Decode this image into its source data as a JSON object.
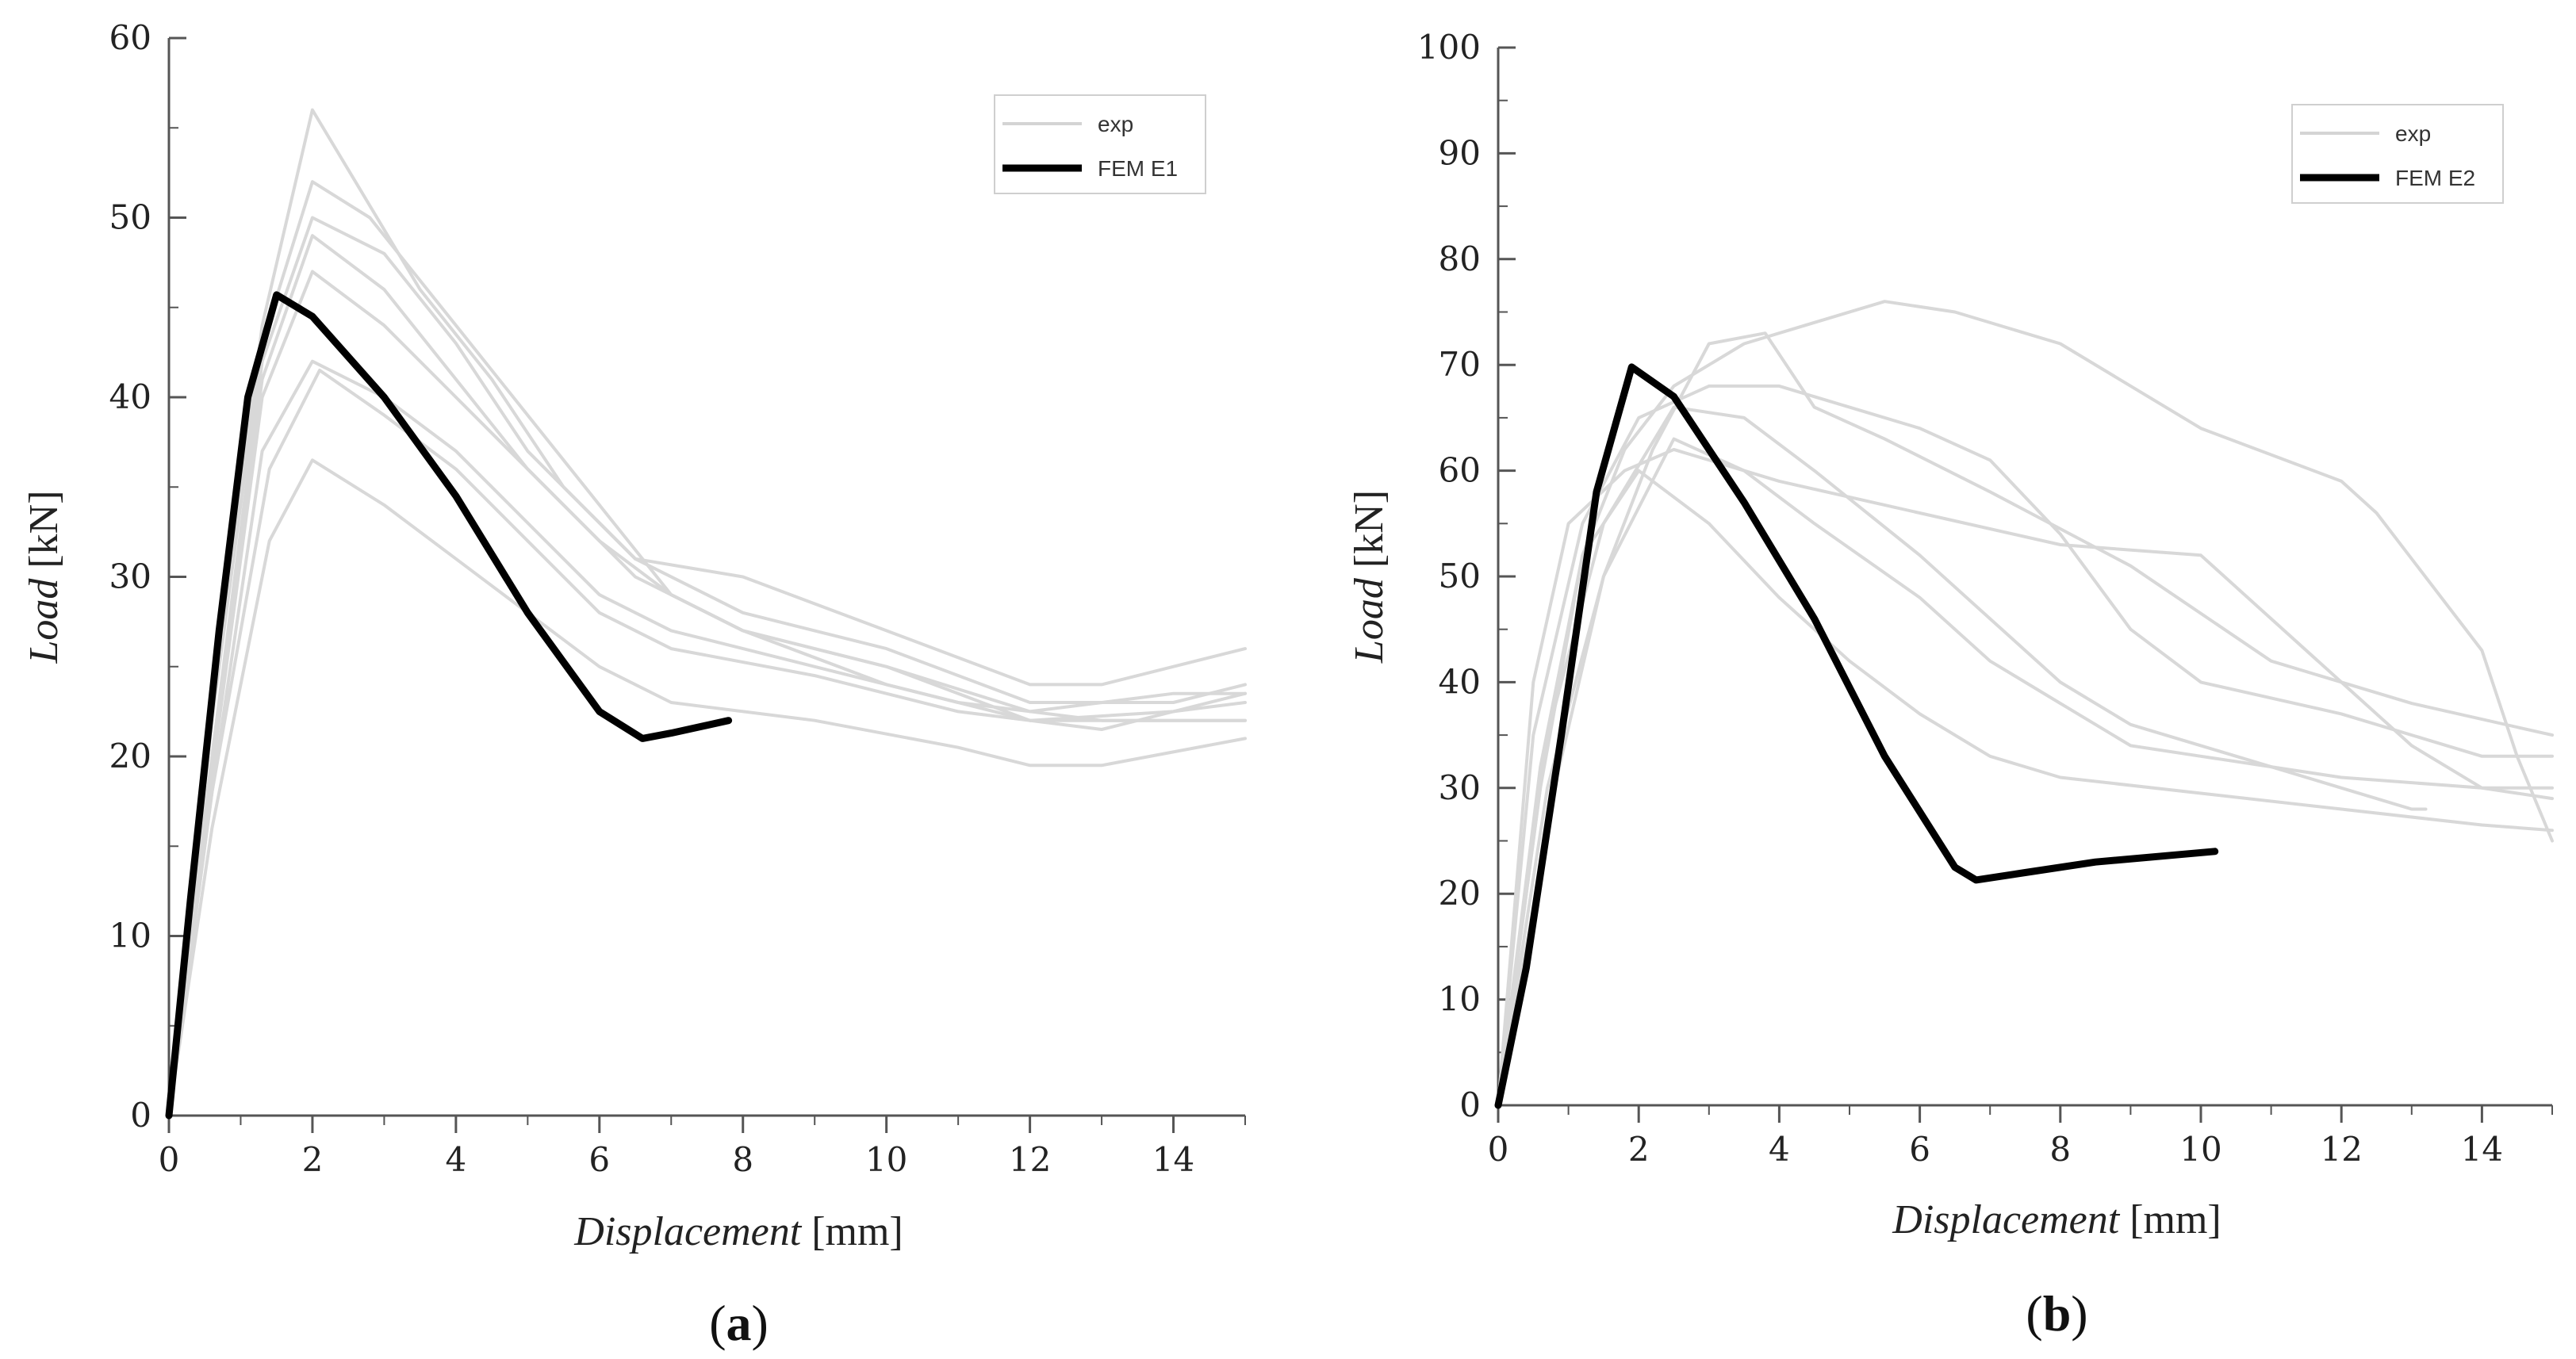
{
  "chart_data": [
    {
      "type": "line",
      "panel_label": "a",
      "xlabel": "Displacement",
      "xunit": "[mm]",
      "ylabel": "Load",
      "yunit": "[kN]",
      "xlim": [
        0,
        15
      ],
      "ylim": [
        0,
        60
      ],
      "xticks": [
        0,
        2,
        4,
        6,
        8,
        10,
        12,
        14
      ],
      "yticks": [
        0,
        10,
        20,
        30,
        40,
        50,
        60
      ],
      "legend_position": "top-right",
      "legend": [
        {
          "label": "exp",
          "color": "#d4d4d4"
        },
        {
          "label": "FEM E1",
          "color": "#000000"
        }
      ],
      "series": [
        {
          "name": "exp",
          "color": "#d8d8d8",
          "points": [
            [
              0,
              0
            ],
            [
              0.6,
              22
            ],
            [
              1.3,
              44
            ],
            [
              2.0,
              56
            ],
            [
              2.6,
              52
            ],
            [
              3.5,
              46
            ],
            [
              4.5,
              41
            ],
            [
              5.5,
              35
            ],
            [
              6.5,
              31
            ],
            [
              8,
              30
            ],
            [
              10,
              27
            ],
            [
              12,
              24
            ],
            [
              13,
              24
            ],
            [
              15,
              26
            ]
          ]
        },
        {
          "name": "exp",
          "color": "#d8d8d8",
          "points": [
            [
              0,
              0
            ],
            [
              0.6,
              22
            ],
            [
              1.3,
              43
            ],
            [
              2.0,
              52
            ],
            [
              2.8,
              50
            ],
            [
              4,
              44
            ],
            [
              5,
              39
            ],
            [
              6,
              34
            ],
            [
              7,
              29
            ],
            [
              8,
              27
            ],
            [
              10,
              25
            ],
            [
              12,
              22.5
            ],
            [
              14,
              23.5
            ],
            [
              15,
              23.5
            ]
          ]
        },
        {
          "name": "exp",
          "color": "#d8d8d8",
          "points": [
            [
              0,
              0
            ],
            [
              0.6,
              20
            ],
            [
              1.3,
              42
            ],
            [
              2.0,
              50
            ],
            [
              3,
              48
            ],
            [
              4,
              43
            ],
            [
              5,
              37
            ],
            [
              6.5,
              31
            ],
            [
              8,
              28
            ],
            [
              10,
              26
            ],
            [
              12,
              23
            ],
            [
              14,
              23
            ],
            [
              15,
              24
            ]
          ]
        },
        {
          "name": "exp",
          "color": "#d8d8d8",
          "points": [
            [
              0,
              0
            ],
            [
              0.6,
              20
            ],
            [
              1.3,
              41
            ],
            [
              2.0,
              49
            ],
            [
              3,
              46
            ],
            [
              4,
              41
            ],
            [
              5,
              36
            ],
            [
              6.5,
              30
            ],
            [
              8,
              27
            ],
            [
              10,
              25
            ],
            [
              12,
              22
            ],
            [
              14,
              22.5
            ],
            [
              15,
              23
            ]
          ]
        },
        {
          "name": "exp",
          "color": "#d8d8d8",
          "points": [
            [
              0,
              0
            ],
            [
              0.6,
              19
            ],
            [
              1.3,
              40
            ],
            [
              2.0,
              47
            ],
            [
              3,
              44
            ],
            [
              4,
              40
            ],
            [
              5,
              36
            ],
            [
              6,
              32
            ],
            [
              7,
              29
            ],
            [
              8,
              27
            ],
            [
              10,
              24
            ],
            [
              12,
              22
            ],
            [
              14,
              22
            ],
            [
              15,
              22
            ]
          ]
        },
        {
          "name": "exp",
          "color": "#d8d8d8",
          "points": [
            [
              0,
              0
            ],
            [
              0.6,
              18
            ],
            [
              1.3,
              37
            ],
            [
              2.0,
              42
            ],
            [
              3,
              40
            ],
            [
              4,
              37
            ],
            [
              5,
              33
            ],
            [
              6,
              29
            ],
            [
              7,
              27
            ],
            [
              9,
              25
            ],
            [
              11,
              23
            ],
            [
              13,
              22
            ],
            [
              15,
              22
            ]
          ]
        },
        {
          "name": "exp",
          "color": "#d8d8d8",
          "points": [
            [
              0,
              0
            ],
            [
              0.6,
              18
            ],
            [
              1.4,
              36
            ],
            [
              2.1,
              41.5
            ],
            [
              3,
              39
            ],
            [
              4,
              36
            ],
            [
              5,
              32
            ],
            [
              6,
              28
            ],
            [
              7,
              26
            ],
            [
              9,
              24.5
            ],
            [
              11,
              22.5
            ],
            [
              13,
              21.5
            ],
            [
              15,
              23.5
            ]
          ]
        },
        {
          "name": "exp",
          "color": "#d8d8d8",
          "points": [
            [
              0,
              0
            ],
            [
              0.6,
              16
            ],
            [
              1.4,
              32
            ],
            [
              2.0,
              36.5
            ],
            [
              3,
              34
            ],
            [
              4,
              31
            ],
            [
              5,
              28
            ],
            [
              6,
              25
            ],
            [
              7,
              23
            ],
            [
              9,
              22
            ],
            [
              11,
              20.5
            ],
            [
              12,
              19.5
            ],
            [
              13,
              19.5
            ],
            [
              15,
              21
            ]
          ]
        },
        {
          "name": "FEM E1",
          "color": "#000000",
          "points": [
            [
              0,
              0
            ],
            [
              0.3,
              12
            ],
            [
              0.7,
              27
            ],
            [
              1.1,
              40
            ],
            [
              1.5,
              45.7
            ],
            [
              2.0,
              44.5
            ],
            [
              3,
              40
            ],
            [
              4,
              34.5
            ],
            [
              5,
              28
            ],
            [
              6,
              22.5
            ],
            [
              6.6,
              21
            ],
            [
              7,
              21.3
            ],
            [
              7.8,
              22
            ]
          ]
        }
      ]
    },
    {
      "type": "line",
      "panel_label": "b",
      "xlabel": "Displacement",
      "xunit": "[mm]",
      "ylabel": "Load",
      "yunit": "[kN]",
      "xlim": [
        0,
        15
      ],
      "ylim": [
        0,
        100
      ],
      "xticks": [
        0,
        2,
        4,
        6,
        8,
        10,
        12,
        14
      ],
      "yticks": [
        0,
        10,
        20,
        30,
        40,
        50,
        60,
        70,
        80,
        90,
        100
      ],
      "legend_position": "top-right",
      "legend": [
        {
          "label": "exp",
          "color": "#d4d4d4"
        },
        {
          "label": "FEM E2",
          "color": "#000000"
        }
      ],
      "series": [
        {
          "name": "exp",
          "color": "#d8d8d8",
          "points": [
            [
              0,
              0
            ],
            [
              0.6,
              30
            ],
            [
              1.2,
              52
            ],
            [
              1.8,
              62
            ],
            [
              2.5,
              68
            ],
            [
              3.5,
              72
            ],
            [
              4.5,
              74
            ],
            [
              5.5,
              76
            ],
            [
              6.5,
              75
            ],
            [
              8,
              72
            ],
            [
              10,
              64
            ],
            [
              12,
              59
            ],
            [
              12.5,
              56
            ],
            [
              14,
              43
            ],
            [
              14.5,
              33
            ],
            [
              15,
              25
            ]
          ]
        },
        {
          "name": "exp",
          "color": "#d8d8d8",
          "points": [
            [
              0,
              0
            ],
            [
              0.8,
              30
            ],
            [
              1.5,
              50
            ],
            [
              2.2,
              62
            ],
            [
              3,
              72
            ],
            [
              3.8,
              73
            ],
            [
              4.5,
              66
            ],
            [
              5.5,
              63
            ],
            [
              7,
              58
            ],
            [
              9,
              51
            ],
            [
              11,
              42
            ],
            [
              13,
              38
            ],
            [
              15,
              35
            ]
          ]
        },
        {
          "name": "exp",
          "color": "#d8d8d8",
          "points": [
            [
              0,
              0
            ],
            [
              0.5,
              35
            ],
            [
              1.2,
              55
            ],
            [
              2,
              65
            ],
            [
              3,
              68
            ],
            [
              4,
              68
            ],
            [
              5,
              66
            ],
            [
              6,
              64
            ],
            [
              7,
              61
            ],
            [
              8,
              54
            ],
            [
              9,
              45
            ],
            [
              10,
              40
            ],
            [
              12,
              37
            ],
            [
              14,
              33
            ],
            [
              15,
              33
            ]
          ]
        },
        {
          "name": "exp",
          "color": "#d8d8d8",
          "points": [
            [
              0,
              0
            ],
            [
              0.5,
              40
            ],
            [
              1.0,
              55
            ],
            [
              1.8,
              60
            ],
            [
              2.5,
              62
            ],
            [
              4,
              59
            ],
            [
              6,
              56
            ],
            [
              8,
              53
            ],
            [
              10,
              52
            ],
            [
              11,
              46
            ],
            [
              12,
              40
            ],
            [
              13,
              34
            ],
            [
              14,
              30
            ],
            [
              15,
              30
            ]
          ]
        },
        {
          "name": "exp",
          "color": "#d8d8d8",
          "points": [
            [
              0,
              0
            ],
            [
              0.7,
              35
            ],
            [
              1.5,
              55
            ],
            [
              2.5,
              66
            ],
            [
              3.5,
              65
            ],
            [
              4.5,
              60
            ],
            [
              6,
              52
            ],
            [
              7,
              46
            ],
            [
              8,
              40
            ],
            [
              9,
              36
            ],
            [
              10,
              34
            ],
            [
              11,
              32
            ],
            [
              12,
              30
            ],
            [
              13,
              28
            ],
            [
              13.2,
              28
            ]
          ]
        },
        {
          "name": "exp",
          "color": "#d8d8d8",
          "points": [
            [
              0,
              0
            ],
            [
              0.7,
              30
            ],
            [
              1.5,
              50
            ],
            [
              2.5,
              63
            ],
            [
              3.5,
              60
            ],
            [
              4.5,
              55
            ],
            [
              6,
              48
            ],
            [
              7,
              42
            ],
            [
              8,
              38
            ],
            [
              9,
              34
            ],
            [
              10,
              33
            ],
            [
              12,
              31
            ],
            [
              14,
              30
            ],
            [
              15,
              29
            ]
          ]
        },
        {
          "name": "exp",
          "color": "#d8d8d8",
          "points": [
            [
              0,
              0
            ],
            [
              0.6,
              32
            ],
            [
              1.2,
              52
            ],
            [
              2,
              60
            ],
            [
              3,
              55
            ],
            [
              4,
              48
            ],
            [
              5,
              42
            ],
            [
              6,
              37
            ],
            [
              7,
              33
            ],
            [
              8,
              31
            ],
            [
              10,
              29.5
            ],
            [
              12,
              28
            ],
            [
              14,
              26.5
            ],
            [
              15,
              26
            ]
          ]
        },
        {
          "name": "FEM E2",
          "color": "#000000",
          "points": [
            [
              0,
              0
            ],
            [
              0.4,
              13
            ],
            [
              0.9,
              35
            ],
            [
              1.4,
              58
            ],
            [
              1.9,
              69.8
            ],
            [
              2.5,
              67
            ],
            [
              3.5,
              57
            ],
            [
              4.5,
              46
            ],
            [
              5.5,
              33
            ],
            [
              6.5,
              22.5
            ],
            [
              6.8,
              21.3
            ],
            [
              7.5,
              22
            ],
            [
              8.5,
              23
            ],
            [
              10.2,
              24
            ]
          ]
        }
      ]
    }
  ]
}
